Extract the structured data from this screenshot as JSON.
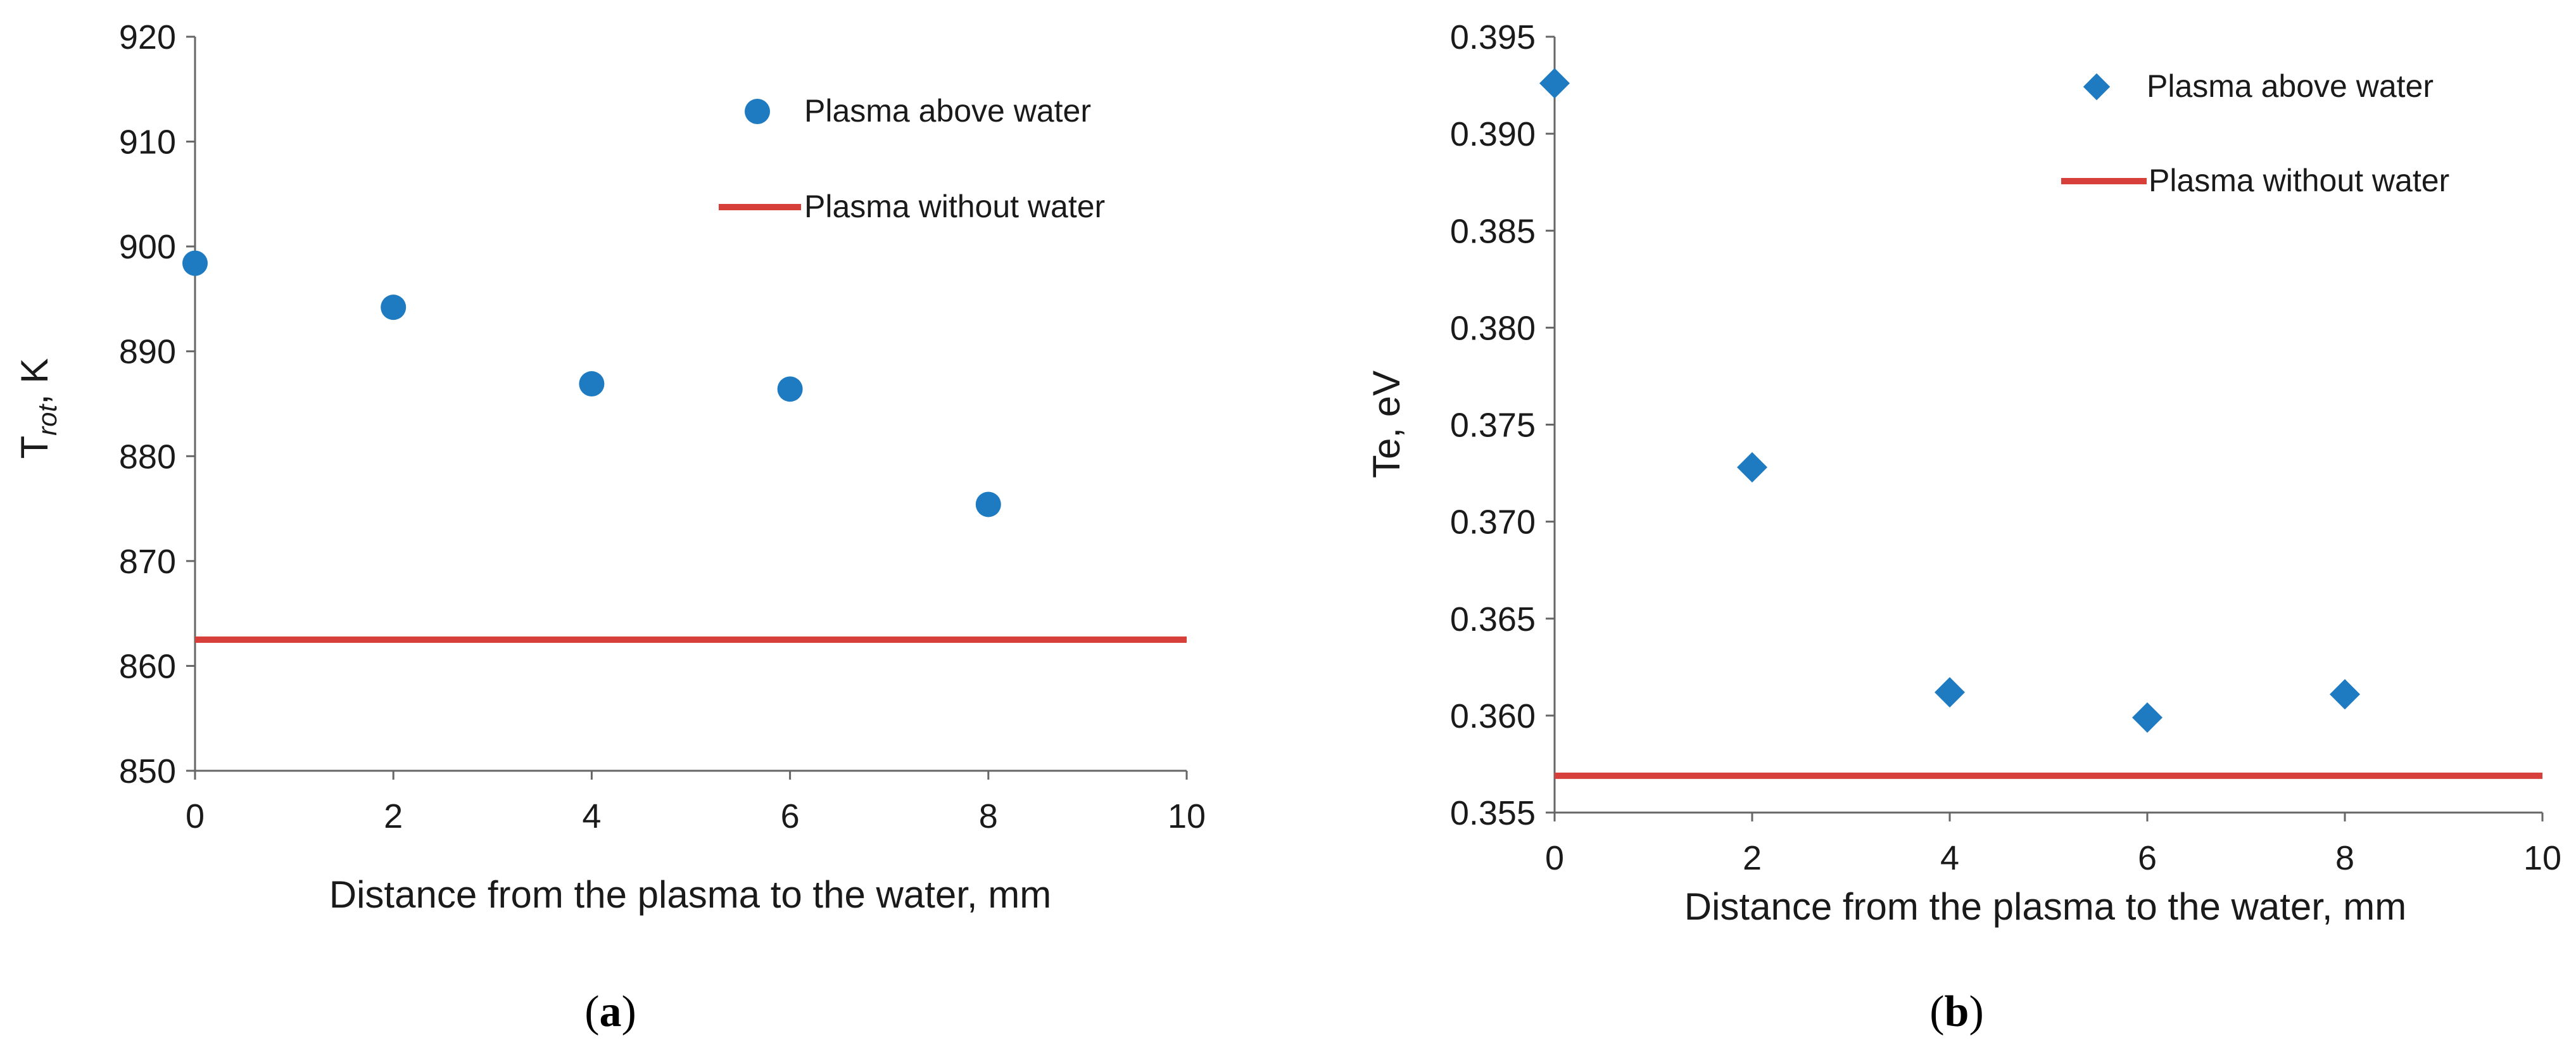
{
  "colors": {
    "series": "#1f7bc1",
    "reference": "#d7403a",
    "axis": "#666666"
  },
  "chart_data": [
    {
      "type": "scatter",
      "panel": "a",
      "caption": "(a)",
      "caption_open": "(",
      "caption_letter": "a",
      "caption_close": ")",
      "xlabel": "Distance from the plasma to the water, mm",
      "ylabel_main": "T",
      "ylabel_sub": "rot",
      "ylabel_rest": ", K",
      "xlim": [
        0,
        10
      ],
      "ylim": [
        850,
        920
      ],
      "xticks": [
        0,
        2,
        4,
        6,
        8,
        10
      ],
      "yticks": [
        850,
        860,
        870,
        880,
        890,
        900,
        910,
        920
      ],
      "marker": "circle",
      "series": [
        {
          "name": "Plasma above water",
          "x": [
            0,
            2,
            4,
            6,
            8
          ],
          "y": [
            898.4,
            894.2,
            886.9,
            886.4,
            875.4
          ]
        }
      ],
      "reference_line": {
        "name": "Plasma without water",
        "y": 862.5
      }
    },
    {
      "type": "scatter",
      "panel": "b",
      "caption": "(b)",
      "caption_open": "(",
      "caption_letter": "b",
      "caption_close": ")",
      "xlabel": "Distance from the plasma to the water, mm",
      "ylabel": "Te, eV",
      "xlim": [
        0,
        10
      ],
      "ylim": [
        0.355,
        0.395
      ],
      "xticks": [
        0,
        2,
        4,
        6,
        8,
        10
      ],
      "yticks": [
        "0.355",
        "0.360",
        "0.365",
        "0.370",
        "0.375",
        "0.380",
        "0.385",
        "0.390",
        "0.395"
      ],
      "marker": "diamond",
      "series": [
        {
          "name": "Plasma above water",
          "x": [
            0,
            2,
            4,
            6,
            8
          ],
          "y": [
            0.3926,
            0.3728,
            0.3612,
            0.3599,
            0.3611
          ]
        }
      ],
      "reference_line": {
        "name": "Plasma without water",
        "y": 0.3569
      }
    }
  ]
}
